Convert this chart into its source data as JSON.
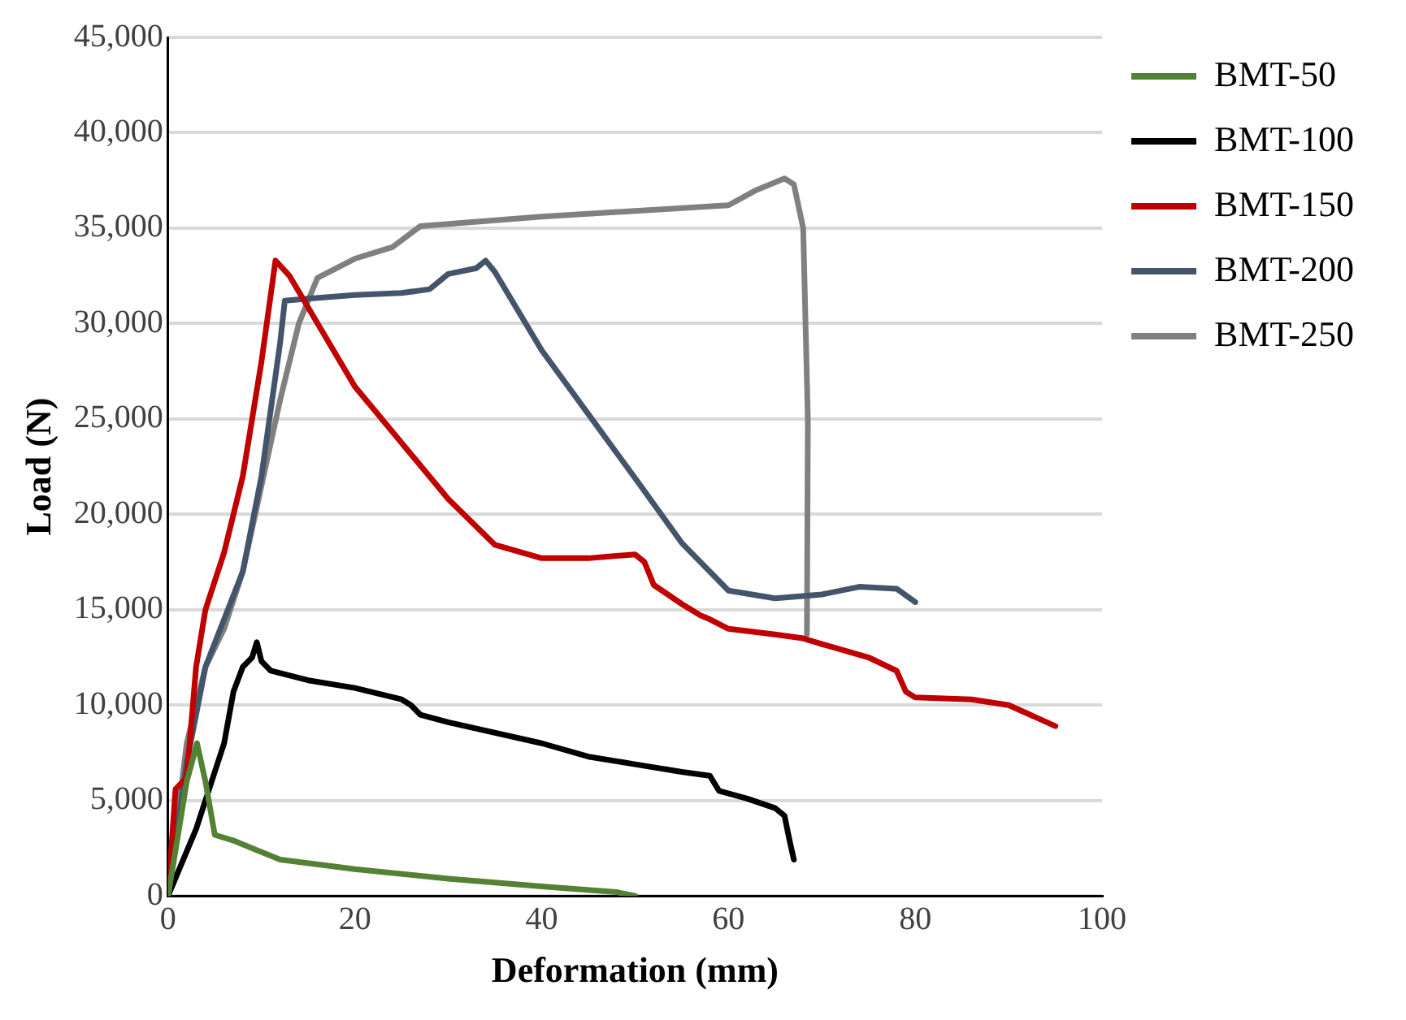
{
  "chart_data": {
    "type": "line",
    "xlabel": "Deformation (mm)",
    "ylabel": "Load (N)",
    "xlim": [
      0,
      100
    ],
    "xticks": [
      0,
      20,
      40,
      60,
      80,
      100
    ],
    "ylim": [
      0,
      45000
    ],
    "yticks": [
      0,
      {
        "value": 5000,
        "label": "5,000"
      },
      {
        "value": 10000,
        "label": "10,000"
      },
      {
        "value": 15000,
        "label": "15,000"
      },
      {
        "value": 20000,
        "label": "20,000"
      },
      {
        "value": 25000,
        "label": "25,000"
      },
      {
        "value": 30000,
        "label": "30,000"
      },
      {
        "value": 35000,
        "label": "35,000"
      },
      {
        "value": 40000,
        "label": "40,000"
      },
      {
        "value": 45000,
        "label": "45,000"
      }
    ],
    "grid": "y",
    "legend": "top right",
    "marker": "none",
    "line_style": "solid",
    "series": [
      {
        "name": "BMT-50",
        "color": "#548235",
        "x": [
          0,
          1,
          2,
          3.1,
          4,
          5,
          7,
          9,
          12,
          20,
          30,
          40,
          48,
          50
        ],
        "values": [
          0,
          3000,
          6000,
          8000,
          6000,
          3200,
          2900,
          2500,
          1900,
          1400,
          900,
          500,
          200,
          0
        ]
      },
      {
        "name": "BMT-100",
        "color": "#000000",
        "x": [
          0,
          3,
          6,
          7,
          8,
          9,
          9.5,
          10,
          11,
          15,
          20,
          25,
          26,
          27,
          30,
          40,
          45,
          50,
          55,
          58,
          59,
          62,
          65,
          66,
          66.5,
          67
        ],
        "values": [
          0,
          3500,
          8000,
          10700,
          12000,
          12500,
          13300,
          12300,
          11800,
          11300,
          10900,
          10300,
          10000,
          9500,
          9100,
          8000,
          7300,
          6900,
          6500,
          6300,
          5500,
          5100,
          4600,
          4200,
          3000,
          1900
        ]
      },
      {
        "name": "BMT-150",
        "color": "#c00000",
        "x": [
          0,
          0.8,
          2,
          3,
          4,
          6,
          8,
          10,
          11.5,
          13,
          20,
          30,
          35,
          40,
          45,
          50,
          51,
          52,
          55,
          57,
          58,
          60,
          65,
          68,
          70,
          75,
          78,
          79,
          80,
          86,
          90,
          95
        ],
        "values": [
          0,
          5600,
          6200,
          12000,
          15000,
          18000,
          22000,
          28000,
          33300,
          32500,
          26700,
          20800,
          18400,
          17700,
          17700,
          17900,
          17500,
          16300,
          15300,
          14700,
          14500,
          14000,
          13700,
          13500,
          13200,
          12500,
          11800,
          10700,
          10400,
          10300,
          10000,
          8900
        ]
      },
      {
        "name": "BMT-200",
        "color": "#44546a",
        "x": [
          0,
          2,
          4,
          8,
          10,
          12,
          12.5,
          15,
          20,
          25,
          28,
          29,
          30,
          33,
          34,
          35,
          40,
          50,
          55,
          60,
          65,
          70,
          74,
          78,
          80
        ],
        "values": [
          0,
          7000,
          12000,
          17000,
          22000,
          29000,
          31200,
          31300,
          31500,
          31600,
          31800,
          32200,
          32600,
          32900,
          33300,
          32700,
          28600,
          21900,
          18500,
          16000,
          15600,
          15800,
          16200,
          16100,
          15400
        ]
      },
      {
        "name": "BMT-250",
        "color": "#808080",
        "x": [
          0,
          2,
          4,
          6,
          8,
          10,
          12,
          14,
          16,
          20,
          24,
          27,
          40,
          50,
          60,
          63,
          66,
          67,
          68,
          68.5,
          68.4
        ],
        "values": [
          0,
          8000,
          12000,
          14000,
          17000,
          21500,
          26000,
          30000,
          32400,
          33400,
          34000,
          35100,
          35600,
          35900,
          36200,
          37000,
          37600,
          37300,
          35000,
          25000,
          13700
        ]
      }
    ]
  }
}
